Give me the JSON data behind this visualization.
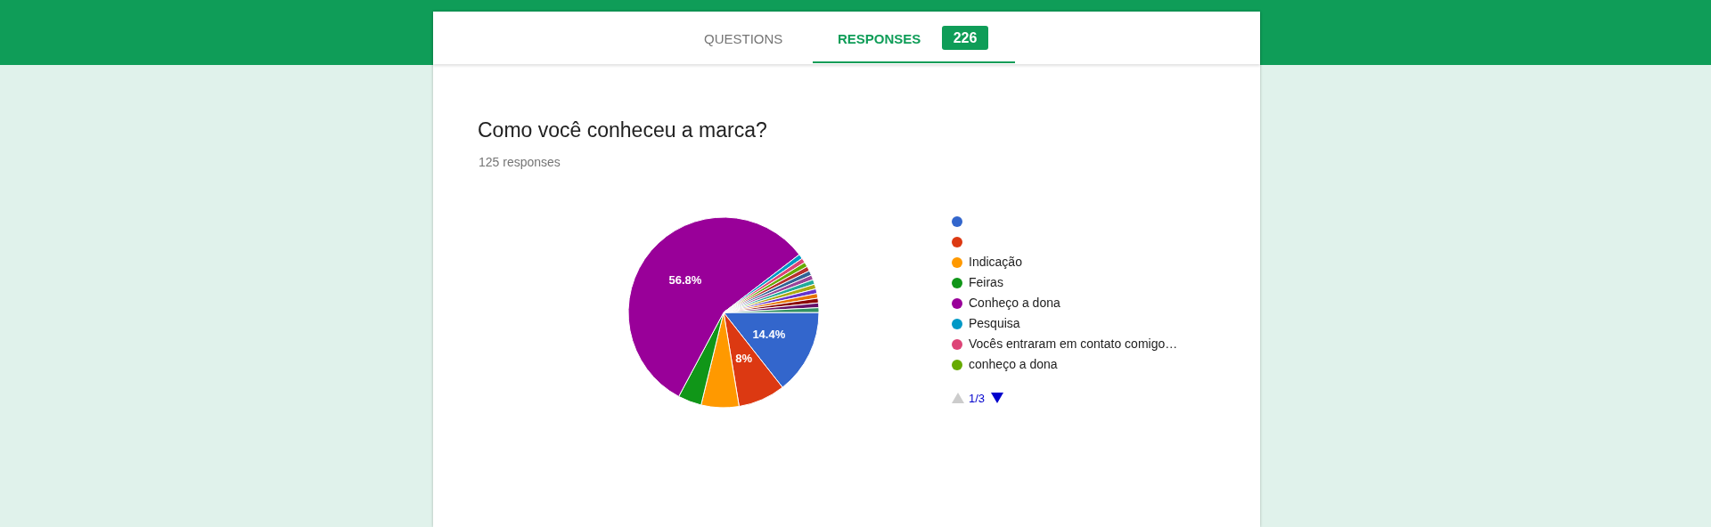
{
  "chart_data": {
    "type": "pie",
    "title": "Como você conheceu a marca?",
    "subtitle": "125 responses",
    "categories": [
      null,
      null,
      "Indicação",
      "Feiras",
      "Conheço a dona",
      "Pesquisa",
      "Vocês entraram em contato comigo…",
      "conheço a dona",
      null,
      null,
      null,
      null,
      null,
      null,
      null,
      null,
      null,
      null
    ],
    "values": [
      14.4,
      8,
      6.4,
      4,
      56.8,
      0.8,
      0.8,
      0.8,
      0.8,
      0.8,
      0.8,
      0.8,
      0.8,
      0.8,
      0.8,
      0.8,
      0.8,
      0.8
    ],
    "colors": [
      "#3366cc",
      "#dc3912",
      "#ff9900",
      "#109618",
      "#990099",
      "#0099c6",
      "#dd4477",
      "#66aa00",
      "#b82e2e",
      "#316395",
      "#994499",
      "#22aa99",
      "#aaaa11",
      "#6633cc",
      "#e67300",
      "#8b0707",
      "#651067",
      "#329262"
    ],
    "value_labels": [
      "14.4%",
      "8%",
      null,
      null,
      "56.8%",
      null,
      null,
      null,
      null,
      null,
      null,
      null,
      null,
      null,
      null,
      null,
      null,
      null
    ],
    "legend": "right",
    "annotations": [
      "QUESTIONS",
      "RESPONSES",
      "226",
      "1/3"
    ]
  }
}
